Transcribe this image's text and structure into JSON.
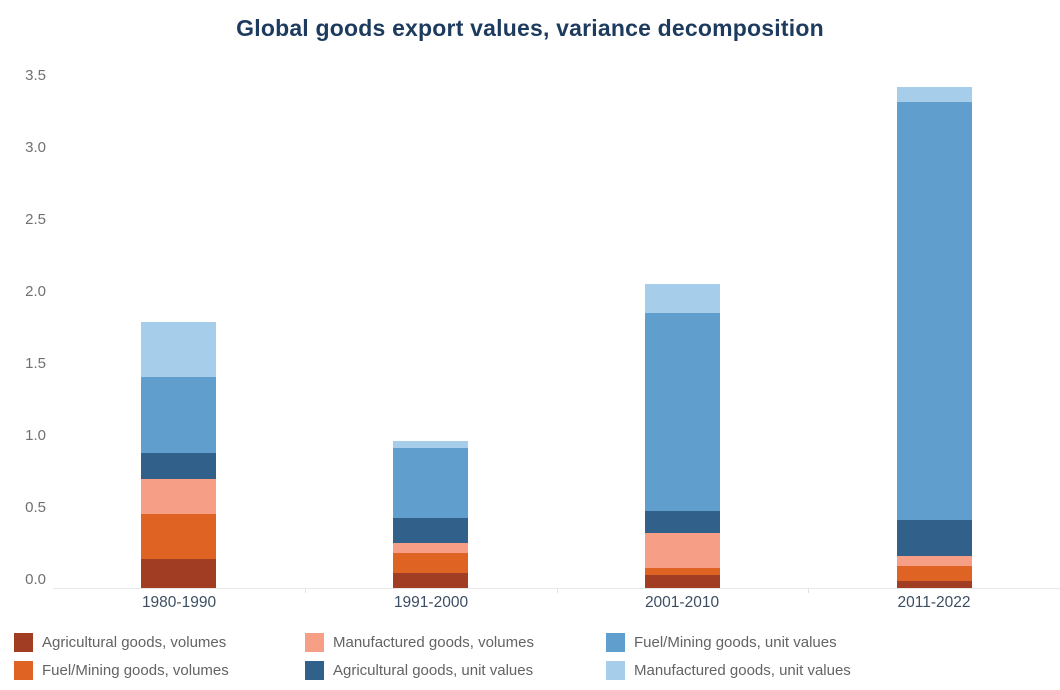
{
  "title": "Global goods export values, variance decomposition",
  "colors": {
    "background": "#ffffff",
    "title_text": "#1d3b5e",
    "y_axis_label_text": "#6e7072",
    "x_axis_label_text": "#3c4e63",
    "legend_text": "#636363",
    "axis_line": "#e8e8e8"
  },
  "chart_data": {
    "type": "bar",
    "stacked": true,
    "title": "Global goods export values, variance decomposition",
    "xlabel": "",
    "ylabel": "",
    "categories": [
      "1980-1990",
      "1991-2000",
      "2001-2010",
      "2011-2022"
    ],
    "series": [
      {
        "name": "Agricultural goods, volumes",
        "color": "#a13d22",
        "values": [
          0.2,
          0.1,
          0.09,
          0.05
        ]
      },
      {
        "name": "Fuel/Mining goods, volumes",
        "color": "#df6322",
        "values": [
          0.31,
          0.14,
          0.05,
          0.1
        ]
      },
      {
        "name": "Manufactured goods, volumes",
        "color": "#f79e86",
        "values": [
          0.24,
          0.07,
          0.24,
          0.07
        ]
      },
      {
        "name": "Agricultural goods, unit values",
        "color": "#31608b",
        "values": [
          0.18,
          0.17,
          0.15,
          0.25
        ]
      },
      {
        "name": "Fuel/Mining goods, unit values",
        "color": "#5f9ecd",
        "values": [
          0.52,
          0.48,
          1.36,
          2.87
        ]
      },
      {
        "name": "Manufactured goods, unit values",
        "color": "#a6cde9",
        "values": [
          0.38,
          0.05,
          0.2,
          0.1
        ]
      }
    ],
    "stack_totals": [
      1.83,
      1.01,
      2.09,
      3.44
    ],
    "ylim": [
      0,
      3.5
    ],
    "ytick_step": 0.5,
    "ytick_labels": [
      "0.0",
      "0.5",
      "1.0",
      "1.5",
      "2.0",
      "2.5",
      "3.0",
      "3.5"
    ],
    "grid": false,
    "legend_position": "bottom",
    "legend_columns": 3
  }
}
